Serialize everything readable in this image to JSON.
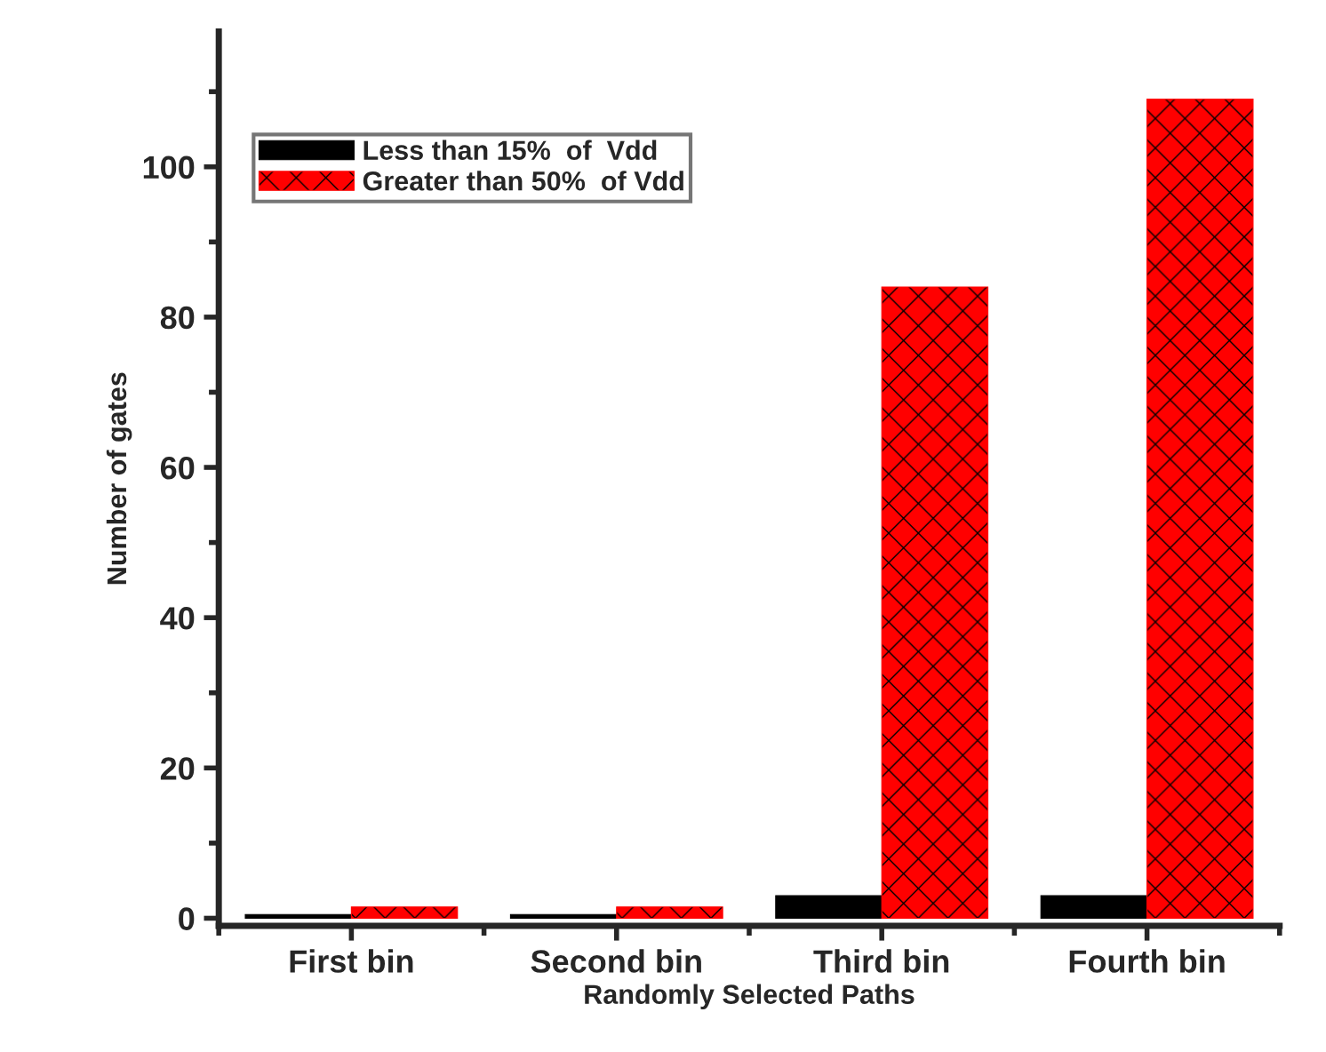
{
  "chart_data": {
    "type": "bar",
    "xlabel": "Randomly Selected Paths",
    "ylabel": "Number of gates",
    "categories": [
      "First bin",
      "Second bin",
      "Third bin",
      "Fourth bin"
    ],
    "series": [
      {
        "name": "Less than 15%  of  Vdd",
        "color": "#000000",
        "values": [
          0.5,
          0.5,
          3,
          3
        ]
      },
      {
        "name": "Greater than 50%  of Vdd",
        "color": "#ff0000",
        "values": [
          1.5,
          1.5,
          84,
          109
        ]
      }
    ],
    "ylim": [
      -1,
      118
    ],
    "yticks": [
      0,
      20,
      40,
      60,
      80,
      100
    ],
    "grid": false,
    "legend": "top left"
  }
}
